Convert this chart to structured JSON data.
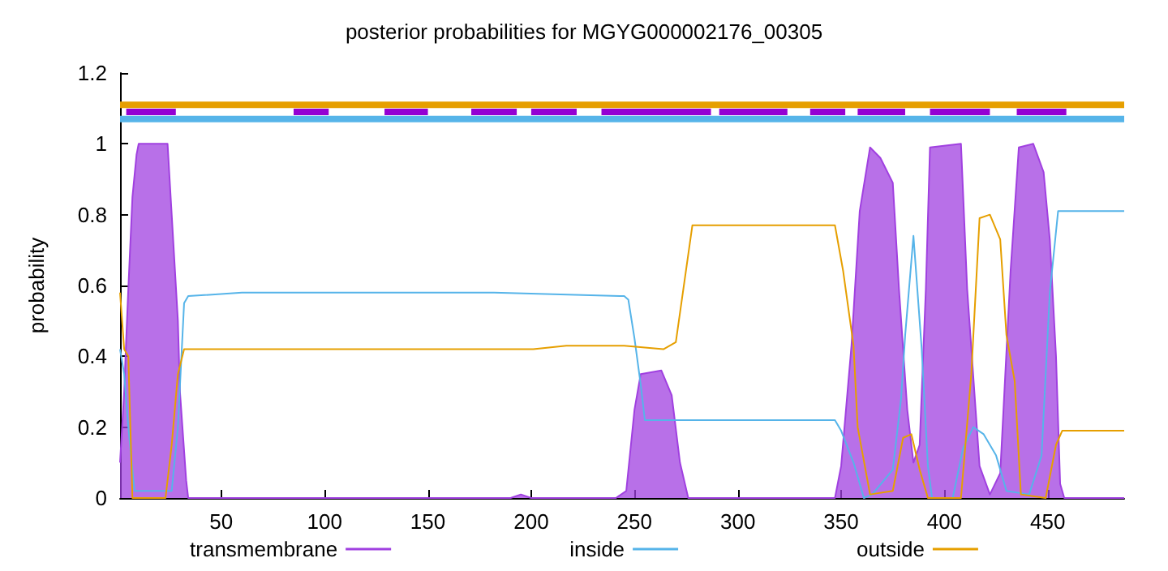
{
  "chart_data": {
    "type": "line",
    "title": "posterior probabilities for MGYG000002176_00305",
    "ylabel": "probability",
    "xlim": [
      1,
      487
    ],
    "ylim": [
      0,
      1.2
    ],
    "xticks": [
      50,
      100,
      150,
      200,
      250,
      300,
      350,
      400,
      450
    ],
    "yticks": [
      0,
      0.2,
      0.4,
      0.6,
      0.8,
      1,
      1.2
    ],
    "grid": false,
    "legend": "bottom",
    "marker": "none",
    "line_style": "solid",
    "series": [
      {
        "name": "transmembrane",
        "type": "area",
        "color": "#a040e0",
        "x": [
          1,
          3,
          4,
          5,
          7,
          9,
          10,
          24,
          26,
          29,
          30,
          33,
          34,
          190,
          195,
          200,
          241,
          246,
          250,
          253,
          263,
          268,
          272,
          276,
          347,
          350,
          355,
          359,
          364,
          369,
          375,
          378,
          382,
          385,
          388,
          391,
          393,
          408,
          411,
          417,
          422,
          427,
          432,
          436,
          443,
          448,
          451,
          454,
          456,
          458,
          487
        ],
        "values": [
          0.1,
          0.3,
          0.45,
          0.59,
          0.85,
          0.97,
          1,
          1,
          0.8,
          0.5,
          0.3,
          0.05,
          0,
          0,
          0.01,
          0,
          0,
          0.02,
          0.25,
          0.35,
          0.36,
          0.29,
          0.1,
          0,
          0,
          0.09,
          0.43,
          0.81,
          0.99,
          0.96,
          0.89,
          0.59,
          0.25,
          0.1,
          0.15,
          0.59,
          0.99,
          1,
          0.59,
          0.09,
          0.01,
          0.07,
          0.64,
          0.99,
          1,
          0.92,
          0.73,
          0.4,
          0.04,
          0,
          0
        ]
      },
      {
        "name": "inside",
        "color": "#56b4e9",
        "x": [
          1,
          3,
          5,
          8,
          26,
          29,
          32,
          34,
          60,
          182,
          245,
          247,
          250,
          253,
          255,
          347,
          350,
          356,
          361,
          365,
          375,
          379,
          381,
          385,
          389,
          392,
          394,
          404,
          409,
          414,
          419,
          425,
          430,
          441,
          447,
          451,
          455,
          487
        ],
        "values": [
          0.42,
          0.35,
          0.2,
          0.02,
          0.02,
          0.2,
          0.55,
          0.57,
          0.58,
          0.58,
          0.57,
          0.56,
          0.45,
          0.32,
          0.22,
          0.22,
          0.19,
          0.1,
          0,
          0.01,
          0.08,
          0.28,
          0.46,
          0.74,
          0.42,
          0.09,
          0,
          0,
          0.14,
          0.2,
          0.18,
          0.12,
          0.02,
          0.01,
          0.12,
          0.58,
          0.81,
          0.81
        ]
      },
      {
        "name": "outside",
        "color": "#e69f00",
        "x": [
          1,
          3,
          5,
          7,
          23,
          26,
          29,
          32,
          201,
          217,
          245,
          264,
          270,
          278,
          347,
          351,
          356,
          358,
          364,
          375,
          380,
          384,
          388,
          392,
          408,
          413,
          417,
          422,
          427,
          430,
          434,
          437,
          449,
          454,
          457,
          487
        ],
        "values": [
          0.58,
          0.42,
          0.4,
          0,
          0,
          0.15,
          0.35,
          0.42,
          0.42,
          0.43,
          0.43,
          0.42,
          0.44,
          0.77,
          0.77,
          0.64,
          0.43,
          0.2,
          0.01,
          0.02,
          0.17,
          0.18,
          0.08,
          0,
          0,
          0.35,
          0.79,
          0.8,
          0.73,
          0.46,
          0.33,
          0.01,
          0,
          0.15,
          0.19,
          0.19
        ]
      },
      {
        "color": "#e69f00",
        "x": [
          1,
          487
        ],
        "values": [
          1.11,
          1.11
        ]
      },
      {
        "color": "#56b4e9",
        "x": [
          1,
          487
        ],
        "values": [
          1.07,
          1.07
        ]
      },
      {
        "color": "#9400d3",
        "x": [
          4,
          28,
          56,
          85,
          102,
          115,
          129,
          150,
          160,
          171,
          193,
          196,
          200,
          222,
          228,
          234,
          287,
          289,
          291,
          324,
          330,
          335,
          352,
          355,
          358,
          381,
          387,
          393,
          422,
          428,
          435,
          459
        ],
        "values": [
          1.09,
          1.09,
          null,
          1.09,
          1.09,
          null,
          1.09,
          1.09,
          null,
          1.09,
          1.09,
          null,
          1.09,
          1.09,
          null,
          1.09,
          1.09,
          null,
          1.09,
          1.09,
          null,
          1.09,
          1.09,
          null,
          1.09,
          1.09,
          null,
          1.09,
          1.09,
          null,
          1.09,
          1.09
        ]
      }
    ]
  }
}
